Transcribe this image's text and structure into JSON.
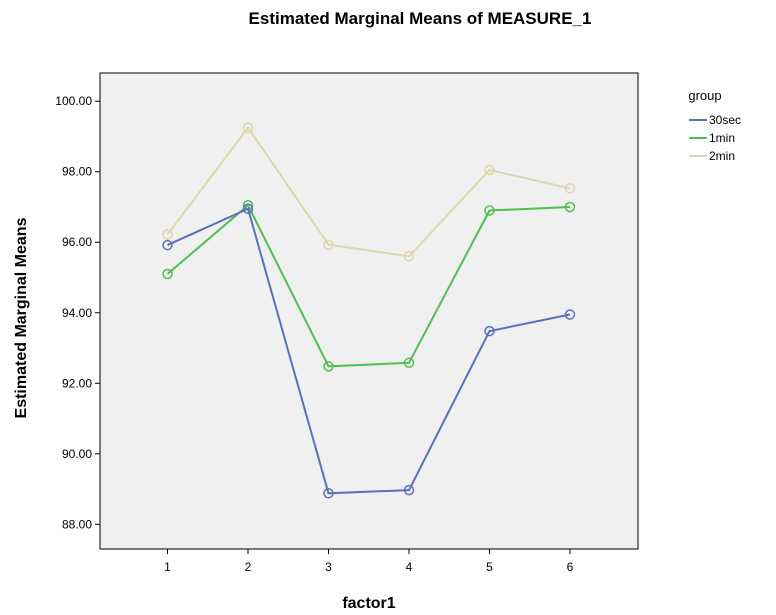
{
  "chart_data": {
    "type": "line",
    "title": "Estimated Marginal Means of MEASURE_1",
    "xlabel": "factor1",
    "ylabel": "Estimated Marginal Means",
    "categories": [
      "1",
      "2",
      "3",
      "4",
      "5",
      "6"
    ],
    "yticks": [
      "88.00",
      "90.00",
      "92.00",
      "94.00",
      "96.00",
      "98.00",
      "100.00"
    ],
    "ylim": [
      87.3,
      100.8
    ],
    "grid": false,
    "legend_title": "group",
    "legend_position": "top-right",
    "plot_background": "#f0f0f0",
    "series": [
      {
        "name": "30sec",
        "color": "#5b6fbd",
        "values": [
          95.92,
          96.95,
          88.88,
          88.97,
          93.48,
          93.95
        ]
      },
      {
        "name": "1min",
        "color": "#4fbf4f",
        "values": [
          95.1,
          97.05,
          92.48,
          92.58,
          96.9,
          97.0
        ]
      },
      {
        "name": "2min",
        "color": "#dcd7ad",
        "values": [
          96.22,
          99.25,
          95.93,
          95.6,
          98.05,
          97.53
        ]
      }
    ]
  }
}
